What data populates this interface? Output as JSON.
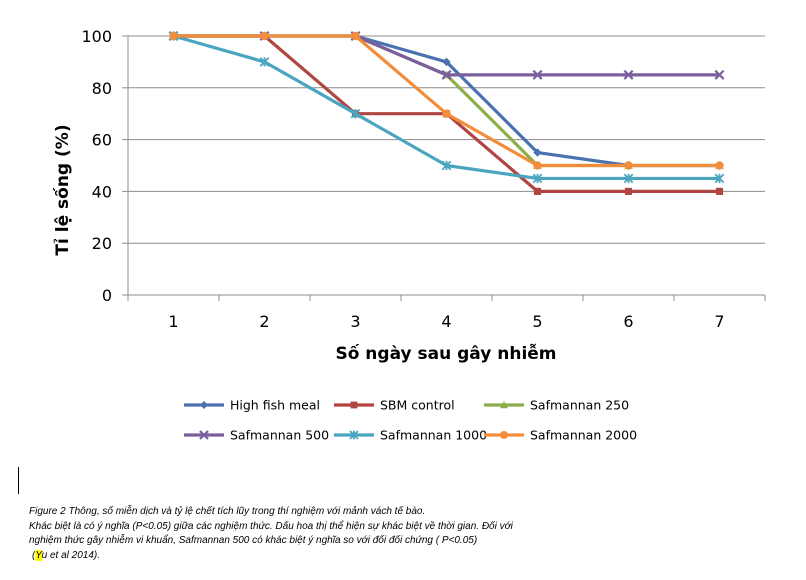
{
  "chart_data": {
    "type": "line",
    "xlabel": "Số ngày sau gây nhiễm",
    "ylabel": "Tỉ lệ sống (%)",
    "x": [
      1,
      2,
      3,
      4,
      5,
      6,
      7
    ],
    "ylim": [
      0,
      100
    ],
    "yticks": [
      0,
      20,
      40,
      60,
      80,
      100
    ],
    "grid": true,
    "legend_position": "bottom",
    "series": [
      {
        "name": "High fish meal",
        "values": [
          100,
          100,
          100,
          90,
          55,
          50,
          50
        ],
        "color": "#4a72b0",
        "marker": "diamond"
      },
      {
        "name": "SBM control",
        "values": [
          100,
          100,
          70,
          70,
          40,
          40,
          40
        ],
        "color": "#b04541",
        "marker": "square"
      },
      {
        "name": "Safmannan 250",
        "values": [
          100,
          100,
          100,
          85,
          50,
          50,
          50
        ],
        "color": "#8cae48",
        "marker": "triangle"
      },
      {
        "name": "Safmannan 500",
        "values": [
          100,
          100,
          100,
          85,
          85,
          85,
          85
        ],
        "color": "#7a5e9e",
        "marker": "x"
      },
      {
        "name": "Safmannan 1000",
        "values": [
          100,
          90,
          70,
          50,
          45,
          45,
          45
        ],
        "color": "#4aa5c0",
        "marker": "star"
      },
      {
        "name": "Safmannan 2000",
        "values": [
          100,
          100,
          100,
          70,
          50,
          50,
          50
        ],
        "color": "#f28e3b",
        "marker": "circle"
      }
    ]
  },
  "caption": {
    "line1": "Figure 2 Thông, số miễn dịch và tỷ lệ chết tích lũy trong thí nghiệm với mảnh vách tế bào.",
    "line2": "Khác biệt là có ý nghĩa (P<0.05) giữa các nghiệm thức. Dấu hoa thị thể hiện sự khác biệt về thời gian. Đối với",
    "line3": "nghiệm thức gây nhiễm vi khuẩn, Safmannan 500 có khác biệt ý nghĩa so với đối đối chứng ( P<0.05)",
    "line4_hl": "Y",
    "line4_rest": "u et al 2014)."
  }
}
